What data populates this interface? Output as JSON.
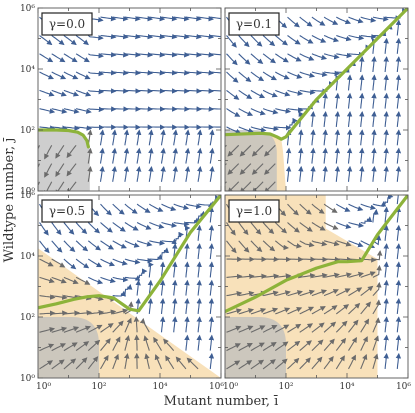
{
  "figure": {
    "xlabel": "Mutant number, ī",
    "ylabel": "Wildtype number, j̄"
  },
  "colors": {
    "stream": "#3f5f94",
    "stream_shaded": "#6b6b6b",
    "nullcline": "#8db33a",
    "basin_orange": "#f7dcae",
    "basin_grey": "#bdbdbd",
    "label_border": "#222222"
  },
  "chart_data": [
    {
      "type": "streamplot",
      "panel": "top-left",
      "label": "γ=0.0",
      "x_scale": "log",
      "y_scale": "log",
      "xlim": [
        1,
        1000000
      ],
      "ylim": [
        1,
        1000000
      ],
      "x_tick_labels": [
        "10⁰",
        "10²",
        "10⁴",
        "10⁶"
      ],
      "y_tick_labels": [
        "10⁰",
        "10²",
        "10⁴",
        "10⁶"
      ],
      "nullcline": {
        "x": [
          1,
          4,
          10,
          20,
          30,
          40,
          45
        ],
        "y": [
          100,
          100,
          96,
          85,
          68,
          45,
          28
        ]
      },
      "grey_region": {
        "x_max": 50,
        "y_max": 100
      },
      "orange_region": []
    },
    {
      "type": "streamplot",
      "panel": "top-right",
      "label": "γ=0.1",
      "x_scale": "log",
      "y_scale": "log",
      "xlim": [
        1,
        1000000
      ],
      "ylim": [
        1,
        1000000
      ],
      "x_tick_labels": [
        "10⁰",
        "10²",
        "10⁴",
        "10⁶"
      ],
      "y_tick_labels": [
        "10⁰",
        "10²",
        "10⁴",
        "10⁶"
      ],
      "nullcline": {
        "x": [
          1,
          5,
          15,
          30,
          50,
          70,
          100,
          1000,
          10000,
          100000,
          1000000
        ],
        "y": [
          70,
          75,
          78,
          74,
          60,
          50,
          60,
          1000,
          10000,
          100000,
          1000000
        ]
      },
      "grey_region": {
        "x_max": 50,
        "y_max": 100
      },
      "orange_region": [
        [
          1,
          1
        ],
        [
          1,
          70
        ],
        [
          8,
          80
        ],
        [
          25,
          78
        ],
        [
          50,
          62
        ],
        [
          70,
          50
        ],
        [
          80,
          20
        ],
        [
          100,
          1
        ]
      ]
    },
    {
      "type": "streamplot",
      "panel": "bottom-left",
      "label": "γ=0.5",
      "x_scale": "log",
      "y_scale": "log",
      "xlim": [
        1,
        1000000
      ],
      "ylim": [
        1,
        1000000
      ],
      "x_tick_labels": [
        "10⁰",
        "10²",
        "10⁴",
        "10⁶"
      ],
      "y_tick_labels": [
        "10⁰",
        "10²",
        "10⁴",
        "10⁶"
      ],
      "nullcline": {
        "x": [
          1,
          4,
          15,
          40,
          100,
          300,
          1000,
          2000,
          10000,
          100000,
          1000000
        ],
        "y": [
          200,
          270,
          380,
          460,
          500,
          420,
          180,
          160,
          1500,
          60000,
          1000000
        ]
      },
      "grey_region": {
        "x_max": 100,
        "y_max": 100
      },
      "orange_region": [
        [
          1,
          1
        ],
        [
          1,
          18000
        ],
        [
          1000000,
          1
        ],
        [
          1,
          1
        ]
      ]
    },
    {
      "type": "streamplot",
      "panel": "bottom-right",
      "label": "γ=1.0",
      "x_scale": "log",
      "y_scale": "log",
      "xlim": [
        1,
        1000000
      ],
      "ylim": [
        1,
        1000000
      ],
      "x_tick_labels": [
        "10⁰",
        "10²",
        "10⁴",
        "10⁶"
      ],
      "y_tick_labels": [
        "10⁰",
        "10²",
        "10⁴",
        "10⁶"
      ],
      "nullcline": {
        "x": [
          1,
          10,
          100,
          1000,
          5000,
          10000,
          30000,
          100000,
          1000000
        ],
        "y": [
          150,
          450,
          1600,
          4000,
          6500,
          6500,
          7000,
          50000,
          1000000
        ]
      },
      "grey_region": {
        "x_max": 100,
        "y_max": 100
      },
      "orange_region": [
        [
          1,
          1
        ],
        [
          1,
          1000000
        ],
        [
          2000,
          1000000
        ],
        [
          2000,
          80000
        ],
        [
          100000,
          8000
        ],
        [
          100000,
          1
        ],
        [
          1,
          1
        ]
      ]
    }
  ]
}
